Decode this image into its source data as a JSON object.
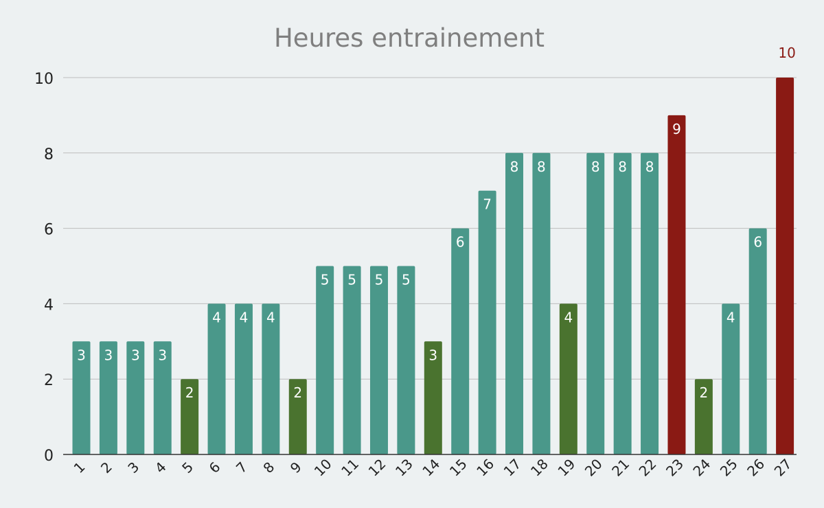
{
  "colors": {
    "background": "#edf1f2",
    "teal": "#4a988a",
    "green": "#4a732f",
    "red": "#8a1a14",
    "grid": "#bdbdbd",
    "title": "#7f7f7f",
    "axis_text": "#222222",
    "label_on_bar": "#ffffff",
    "label_above_bar": "#8a1a14"
  },
  "chart_data": {
    "type": "bar",
    "title": "Heures entrainement",
    "xlabel": "",
    "ylabel": "",
    "ylim": [
      0,
      10
    ],
    "yticks": [
      0,
      2,
      4,
      6,
      8,
      10
    ],
    "grid": true,
    "legend": "none",
    "categories": [
      "1",
      "2",
      "3",
      "4",
      "5",
      "6",
      "7",
      "8",
      "9",
      "10",
      "11",
      "12",
      "13",
      "14",
      "15",
      "16",
      "17",
      "18",
      "19",
      "20",
      "21",
      "22",
      "23",
      "24",
      "25",
      "26",
      "27"
    ],
    "values": [
      3,
      3,
      3,
      3,
      2,
      4,
      4,
      4,
      2,
      5,
      5,
      5,
      5,
      3,
      6,
      7,
      8,
      8,
      4,
      8,
      8,
      8,
      9,
      2,
      4,
      6,
      10
    ],
    "bar_colors": [
      "teal",
      "teal",
      "teal",
      "teal",
      "green",
      "teal",
      "teal",
      "teal",
      "green",
      "teal",
      "teal",
      "teal",
      "teal",
      "green",
      "teal",
      "teal",
      "teal",
      "teal",
      "green",
      "teal",
      "teal",
      "teal",
      "red",
      "green",
      "teal",
      "teal",
      "red"
    ],
    "data_labels": [
      "3",
      "3",
      "3",
      "3",
      "2",
      "4",
      "4",
      "4",
      "2",
      "5",
      "5",
      "5",
      "5",
      "3",
      "6",
      "7",
      "8",
      "8",
      "4",
      "8",
      "8",
      "8",
      "9",
      "2",
      "4",
      "6",
      "10"
    ]
  }
}
